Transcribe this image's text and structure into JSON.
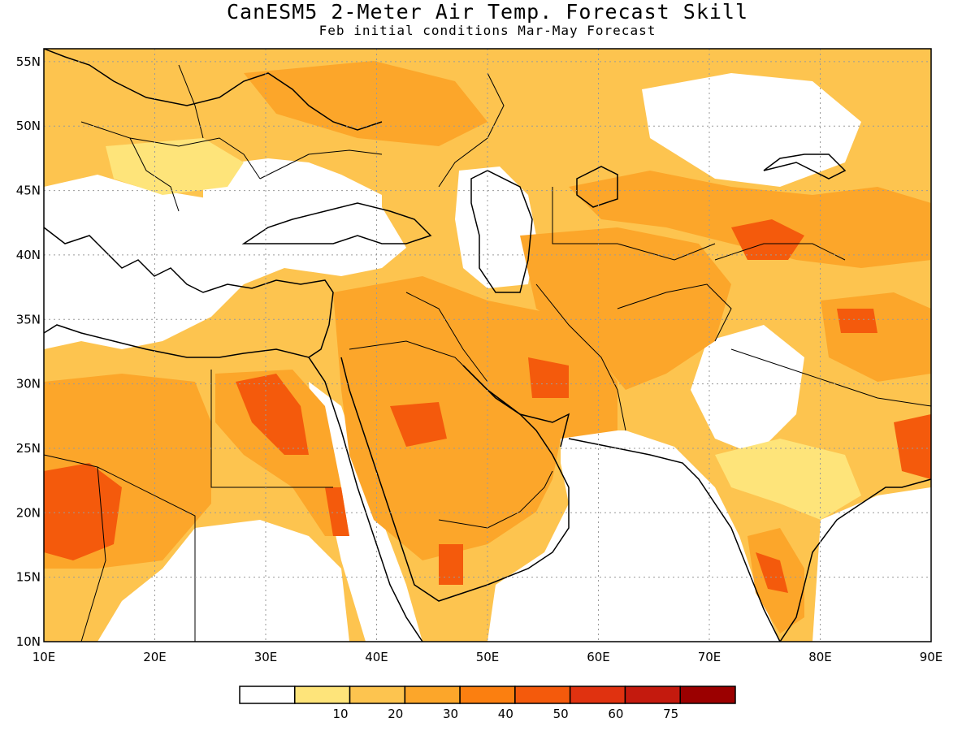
{
  "title": "CanESM5 2-Meter Air Temp. Forecast Skill",
  "subtitle": "Feb initial conditions  Mar-May Forecast",
  "map": {
    "lon_range": [
      10,
      90
    ],
    "lat_range": [
      10,
      56
    ],
    "lon_ticks": [
      10,
      20,
      30,
      40,
      50,
      60,
      70,
      80,
      90
    ],
    "lon_labels": [
      "10E",
      "20E",
      "30E",
      "40E",
      "50E",
      "60E",
      "70E",
      "80E",
      "90E"
    ],
    "lat_ticks": [
      10,
      15,
      20,
      25,
      30,
      35,
      40,
      45,
      50,
      55
    ],
    "lat_labels": [
      "10N",
      "15N",
      "20N",
      "25N",
      "30N",
      "35N",
      "40N",
      "45N",
      "50N",
      "55N"
    ],
    "gridlines": "dotted"
  },
  "colorbar": {
    "bins": [
      {
        "color": "#ffffff"
      },
      {
        "color": "#fee47a",
        "label": "10"
      },
      {
        "color": "#fdc44f",
        "label": "20"
      },
      {
        "color": "#fca62a",
        "label": "30"
      },
      {
        "color": "#fb7f10",
        "label": "40"
      },
      {
        "color": "#f45a0c",
        "label": "50"
      },
      {
        "color": "#e03210",
        "label": "60"
      },
      {
        "color": "#c41a0e",
        "label": "75"
      },
      {
        "color": "#9b0000"
      }
    ]
  },
  "colors": {
    "coast": "#000000",
    "grid": "#9a9a9a"
  }
}
